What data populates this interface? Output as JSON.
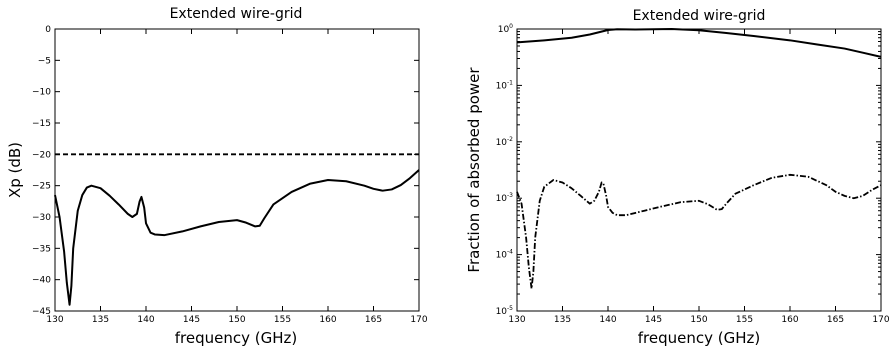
{
  "chart_data": [
    {
      "type": "line",
      "title": "Extended wire-grid",
      "xlabel": "frequency (GHz)",
      "ylabel": "Xp (dB)",
      "xlim": [
        130,
        170
      ],
      "ylim": [
        -45,
        0
      ],
      "xticks": [
        130,
        135,
        140,
        145,
        150,
        155,
        160,
        165,
        170
      ],
      "xtick_labels": [
        "130",
        "135",
        "140",
        "145",
        "150",
        "155",
        "160",
        "165",
        "170"
      ],
      "yticks": [
        0,
        -5,
        -10,
        -15,
        -20,
        -25,
        -30,
        -35,
        -40,
        -45
      ],
      "ytick_labels": [
        "0",
        "−5",
        "−10",
        "−15",
        "−20",
        "−25",
        "−30",
        "−35",
        "−40",
        "−45"
      ],
      "grid": false,
      "series": [
        {
          "style": "solid",
          "color": "#000000",
          "x": [
            130,
            130.5,
            131,
            131.3,
            131.6,
            131.8,
            132,
            132.5,
            133,
            133.5,
            134,
            135,
            136,
            137,
            138,
            138.5,
            139,
            139.3,
            139.5,
            139.8,
            140,
            140.5,
            141,
            142,
            144,
            146,
            148,
            150,
            151,
            152,
            152.5,
            153,
            154,
            156,
            158,
            160,
            162,
            164,
            165,
            166,
            167,
            168,
            169,
            170
          ],
          "y": [
            -26.5,
            -30,
            -35.5,
            -40.5,
            -44,
            -41,
            -35,
            -29,
            -26.5,
            -25.3,
            -25,
            -25.4,
            -26.6,
            -28,
            -29.5,
            -30,
            -29.5,
            -27.5,
            -26.8,
            -28.5,
            -31,
            -32.5,
            -32.8,
            -32.9,
            -32.3,
            -31.5,
            -30.8,
            -30.5,
            -30.9,
            -31.5,
            -31.4,
            -30.2,
            -28,
            -26,
            -24.7,
            -24.1,
            -24.3,
            -25,
            -25.5,
            -25.8,
            -25.6,
            -24.9,
            -23.8,
            -22.5
          ]
        },
        {
          "style": "dashed",
          "color": "#000000",
          "x": [
            130,
            170
          ],
          "y": [
            -20,
            -20
          ]
        }
      ]
    },
    {
      "type": "line",
      "title": "Extended wire-grid",
      "xlabel": "frequency (GHz)",
      "ylabel": "Fraction of absorbed power",
      "xlim": [
        130,
        170
      ],
      "ylim": [
        1e-05,
        1
      ],
      "yscale": "log",
      "xticks": [
        130,
        135,
        140,
        145,
        150,
        155,
        160,
        165,
        170
      ],
      "xtick_labels": [
        "130",
        "135",
        "140",
        "145",
        "150",
        "155",
        "160",
        "165",
        "170"
      ],
      "yticks": [
        1,
        0.1,
        0.01,
        0.001,
        0.0001,
        1e-05
      ],
      "ytick_labels": [
        {
          "base": "10",
          "exp": "0"
        },
        {
          "base": "10",
          "exp": "-1"
        },
        {
          "base": "10",
          "exp": "-2"
        },
        {
          "base": "10",
          "exp": "-3"
        },
        {
          "base": "10",
          "exp": "-4"
        },
        {
          "base": "10",
          "exp": "-5"
        }
      ],
      "grid": false,
      "series": [
        {
          "style": "solid",
          "color": "#000000",
          "x": [
            130,
            133,
            136,
            138,
            140,
            141,
            143,
            145,
            147,
            150,
            153,
            156,
            160,
            163,
            166,
            168,
            170
          ],
          "y": [
            0.58,
            0.63,
            0.7,
            0.8,
            0.96,
            0.99,
            0.98,
            0.99,
            1.0,
            0.95,
            0.85,
            0.75,
            0.63,
            0.53,
            0.45,
            0.38,
            0.32
          ]
        },
        {
          "style": "dashdot",
          "color": "#000000",
          "x": [
            130,
            130.5,
            131,
            131.3,
            131.6,
            131.8,
            132,
            132.5,
            133,
            134,
            135,
            136,
            137,
            138,
            138.5,
            139,
            139.3,
            139.5,
            139.8,
            140,
            140.5,
            141,
            142,
            144,
            146,
            148,
            150,
            151,
            152,
            152.5,
            153,
            154,
            156,
            158,
            160,
            162,
            164,
            165,
            166,
            167,
            168,
            169,
            170
          ],
          "y": [
            0.0013,
            0.0008,
            0.0002,
            6e-05,
            2.5e-05,
            5e-05,
            0.0002,
            0.0009,
            0.0016,
            0.0021,
            0.0019,
            0.0015,
            0.0011,
            0.0008,
            0.0009,
            0.0013,
            0.0019,
            0.0018,
            0.0011,
            0.0007,
            0.00055,
            0.0005,
            0.0005,
            0.0006,
            0.00072,
            0.00085,
            0.0009,
            0.00078,
            0.00062,
            0.00064,
            0.0008,
            0.0012,
            0.0017,
            0.0023,
            0.0026,
            0.0024,
            0.0017,
            0.0013,
            0.0011,
            0.001,
            0.0011,
            0.0014,
            0.0017
          ]
        }
      ]
    }
  ]
}
